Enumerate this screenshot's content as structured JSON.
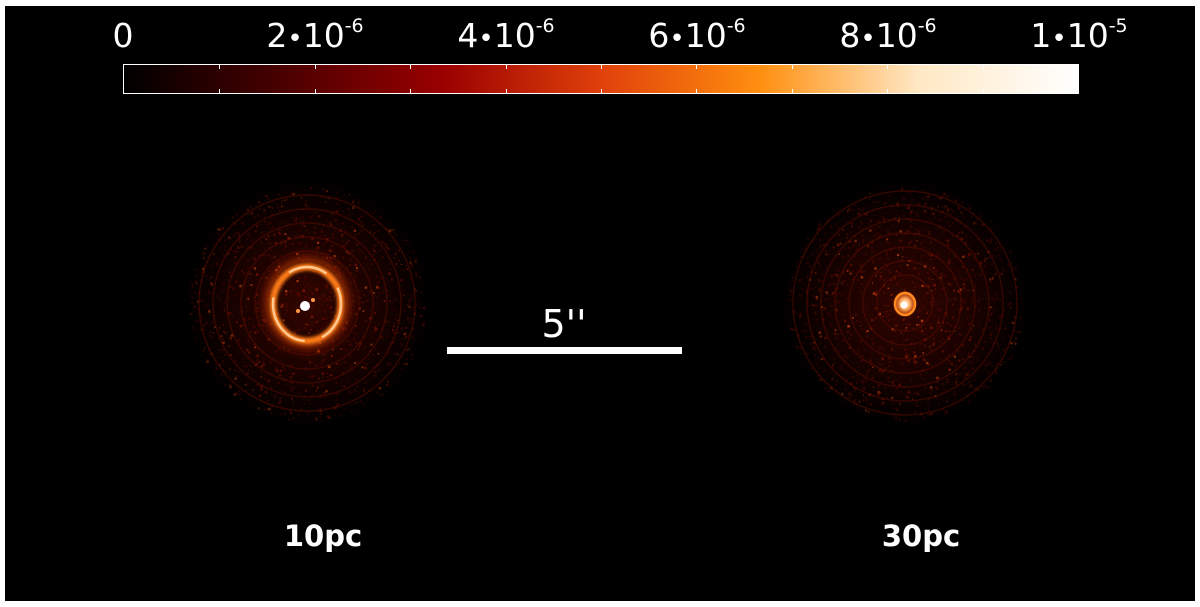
{
  "colorbar": {
    "ticks": [
      {
        "mantissa": "0",
        "mul": "",
        "base": "",
        "exp": ""
      },
      {
        "mantissa": "2",
        "mul": "•",
        "base": "10",
        "exp": "-6"
      },
      {
        "mantissa": "4",
        "mul": "•",
        "base": "10",
        "exp": "-6"
      },
      {
        "mantissa": "6",
        "mul": "•",
        "base": "10",
        "exp": "-6"
      },
      {
        "mantissa": "8",
        "mul": "•",
        "base": "10",
        "exp": "-6"
      },
      {
        "mantissa": "1",
        "mul": "•",
        "base": "10",
        "exp": "-5"
      }
    ],
    "range": [
      0,
      1e-05
    ],
    "colormap": [
      "#000000",
      "#4a0000",
      "#990000",
      "#e0400a",
      "#ff8f10",
      "#ffe8c4",
      "#ffffff"
    ]
  },
  "scale_bar": {
    "label": "5''"
  },
  "panels": [
    {
      "label": "10pc"
    },
    {
      "label": "30pc"
    }
  ],
  "colors": {
    "background": "#000000",
    "text": "#ffffff"
  }
}
